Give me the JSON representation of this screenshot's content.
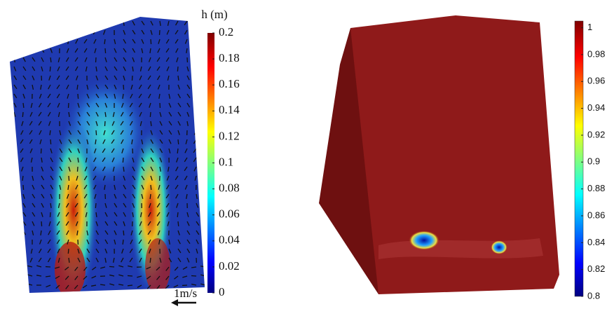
{
  "panels": [
    {
      "colorbar": {
        "title": "h (m)",
        "lim": [
          0,
          0.2
        ],
        "ticks": [
          0.2,
          0.18,
          0.16,
          0.14,
          0.12,
          0.1,
          0.08,
          0.06,
          0.04,
          0.02,
          0
        ]
      },
      "scale_label": "1m/s"
    },
    {
      "colorbar": {
        "lim": [
          0.8,
          1.005
        ],
        "ticks": [
          1,
          0.98,
          0.96,
          0.94,
          0.92,
          0.9,
          0.88,
          0.86,
          0.84,
          0.82,
          0.8
        ]
      }
    }
  ]
}
